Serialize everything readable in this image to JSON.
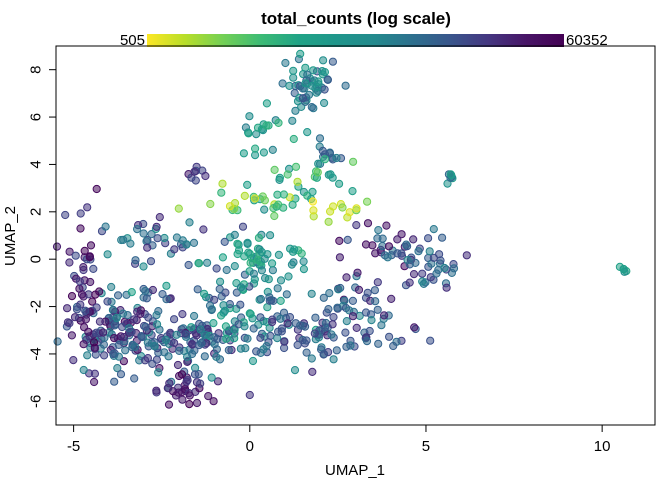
{
  "chart_data": {
    "type": "scatter",
    "title": "total_counts (log scale)",
    "xlabel": "UMAP_1",
    "ylabel": "UMAP_2",
    "xlim": [
      -5.5,
      11.5
    ],
    "ylim": [
      -7,
      9
    ],
    "x_ticks": [
      -5,
      0,
      5,
      10
    ],
    "y_ticks": [
      -6,
      -4,
      -2,
      0,
      2,
      4,
      6,
      8
    ],
    "grid": false,
    "legend": "top colorbar",
    "color_scale": "viridis, reversed, log",
    "colorbar": {
      "min_label": "505",
      "max_label": "60352",
      "min": 505,
      "max": 60352
    },
    "colors": [
      "#FDE725",
      "#B8DE29",
      "#73D055",
      "#3CBB75",
      "#20A386",
      "#1F968B",
      "#238A8D",
      "#2D708E",
      "#39568C",
      "#453781",
      "#481567",
      "#440154"
    ],
    "point_color_value": "total_counts",
    "regions": [
      {
        "cx": -3.6,
        "cy": -3.0,
        "sx": 0.9,
        "sy": 0.9,
        "n": 140,
        "c": [
          0.55,
          0.95
        ]
      },
      {
        "cx": -4.6,
        "cy": -1.2,
        "sx": 0.25,
        "sy": 1.5,
        "n": 55,
        "c": [
          0.75,
          1.0
        ]
      },
      {
        "cx": -2.0,
        "cy": -3.6,
        "sx": 0.8,
        "sy": 0.7,
        "n": 80,
        "c": [
          0.55,
          0.9
        ]
      },
      {
        "cx": -1.8,
        "cy": -5.6,
        "sx": 0.55,
        "sy": 0.35,
        "n": 30,
        "c": [
          0.75,
          1.0
        ]
      },
      {
        "cx": -0.5,
        "cy": -2.3,
        "sx": 1.0,
        "sy": 0.9,
        "n": 90,
        "c": [
          0.35,
          0.8
        ]
      },
      {
        "cx": 0.2,
        "cy": 0.2,
        "sx": 0.8,
        "sy": 0.6,
        "n": 55,
        "c": [
          0.3,
          0.6
        ]
      },
      {
        "cx": -3.0,
        "cy": 0.8,
        "sx": 1.1,
        "sy": 0.5,
        "n": 40,
        "c": [
          0.5,
          0.85
        ]
      },
      {
        "cx": 1.8,
        "cy": -3.3,
        "sx": 1.2,
        "sy": 0.5,
        "n": 70,
        "c": [
          0.55,
          0.85
        ]
      },
      {
        "cx": 3.0,
        "cy": -2.0,
        "sx": 0.8,
        "sy": 0.6,
        "n": 45,
        "c": [
          0.55,
          0.9
        ]
      },
      {
        "cx": 4.0,
        "cy": 0.3,
        "sx": 0.8,
        "sy": 0.7,
        "n": 45,
        "c": [
          0.6,
          0.95
        ]
      },
      {
        "cx": 5.2,
        "cy": -0.3,
        "sx": 0.45,
        "sy": 0.45,
        "n": 25,
        "c": [
          0.55,
          0.85
        ]
      },
      {
        "cx": 1.7,
        "cy": 7.3,
        "sx": 0.45,
        "sy": 0.6,
        "n": 55,
        "c": [
          0.4,
          0.75
        ]
      },
      {
        "cx": 0.3,
        "cy": 5.5,
        "sx": 0.25,
        "sy": 0.5,
        "n": 18,
        "c": [
          0.3,
          0.6
        ]
      },
      {
        "cx": 2.3,
        "cy": 4.4,
        "sx": 0.2,
        "sy": 0.2,
        "n": 12,
        "c": [
          0.55,
          0.8
        ]
      },
      {
        "cx": 1.2,
        "cy": 3.5,
        "sx": 0.8,
        "sy": 0.6,
        "n": 25,
        "c": [
          0.2,
          0.5
        ]
      },
      {
        "cx": 0.5,
        "cy": 2.4,
        "sx": 0.8,
        "sy": 0.35,
        "n": 30,
        "c": [
          0.05,
          0.4
        ]
      },
      {
        "cx": 2.5,
        "cy": 2.1,
        "sx": 0.5,
        "sy": 0.2,
        "n": 12,
        "c": [
          0.0,
          0.2
        ]
      },
      {
        "cx": -1.5,
        "cy": 3.6,
        "sx": 0.2,
        "sy": 0.2,
        "n": 8,
        "c": [
          0.7,
          0.9
        ]
      },
      {
        "cx": 5.7,
        "cy": 3.4,
        "sx": 0.1,
        "sy": 0.15,
        "n": 7,
        "c": [
          0.4,
          0.7
        ]
      },
      {
        "cx": 10.65,
        "cy": -0.5,
        "sx": 0.07,
        "sy": 0.07,
        "n": 5,
        "c": [
          0.35,
          0.55
        ]
      }
    ]
  }
}
